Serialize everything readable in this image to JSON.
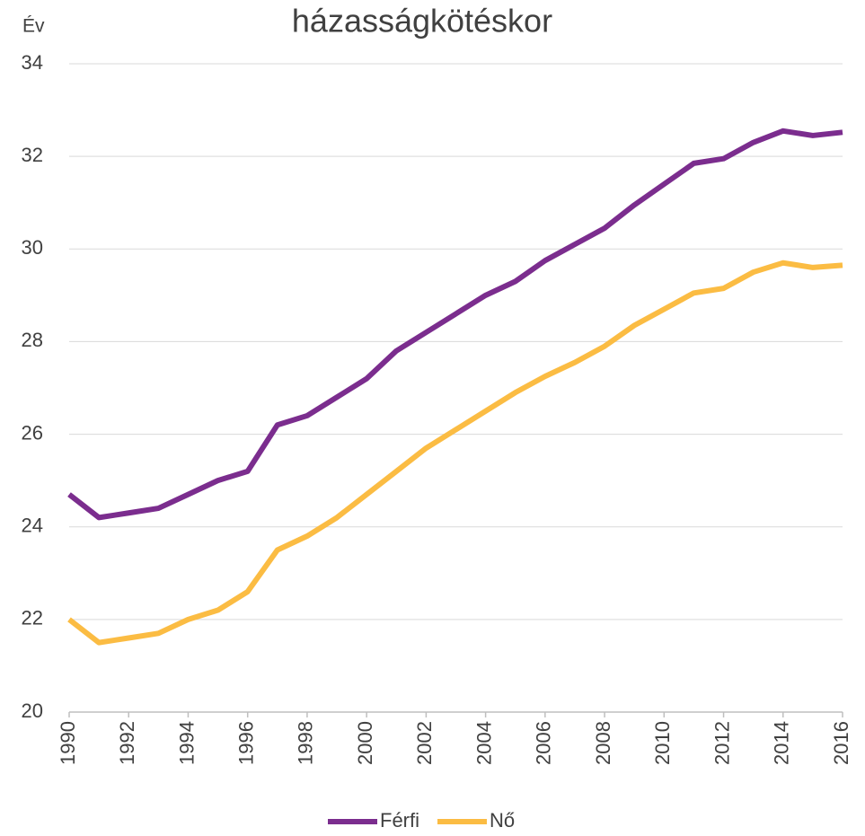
{
  "chart_data": {
    "type": "line",
    "title": "házasságkötéskor",
    "y_label": "Év",
    "x": [
      1990,
      1991,
      1992,
      1993,
      1994,
      1995,
      1996,
      1997,
      1998,
      1999,
      2000,
      2001,
      2002,
      2003,
      2004,
      2005,
      2006,
      2007,
      2008,
      2009,
      2010,
      2011,
      2012,
      2013,
      2014,
      2015,
      2016
    ],
    "series": [
      {
        "name": "Férfi",
        "color": "#7b2d8e",
        "values": [
          24.7,
          24.2,
          24.3,
          24.4,
          24.7,
          25.0,
          25.2,
          26.2,
          26.4,
          26.8,
          27.2,
          27.8,
          28.2,
          28.6,
          29.0,
          29.3,
          29.75,
          30.1,
          30.45,
          30.95,
          31.4,
          31.85,
          31.95,
          32.3,
          32.55,
          32.45,
          32.52
        ]
      },
      {
        "name": "Nő",
        "color": "#fbbc43",
        "values": [
          22.0,
          21.5,
          21.6,
          21.7,
          22.0,
          22.2,
          22.6,
          23.5,
          23.8,
          24.2,
          24.7,
          25.2,
          25.7,
          26.1,
          26.5,
          26.9,
          27.25,
          27.55,
          27.9,
          28.35,
          28.7,
          29.05,
          29.15,
          29.5,
          29.7,
          29.6,
          29.65
        ]
      }
    ],
    "xlim": [
      1990,
      2016
    ],
    "xticks": [
      1990,
      1992,
      1994,
      1996,
      1998,
      2000,
      2002,
      2004,
      2006,
      2008,
      2010,
      2012,
      2014,
      2016
    ],
    "ylim": [
      20,
      34
    ],
    "yticks": [
      20,
      22,
      24,
      26,
      28,
      30,
      32,
      34
    ],
    "grid": true,
    "legend": "bottom"
  }
}
